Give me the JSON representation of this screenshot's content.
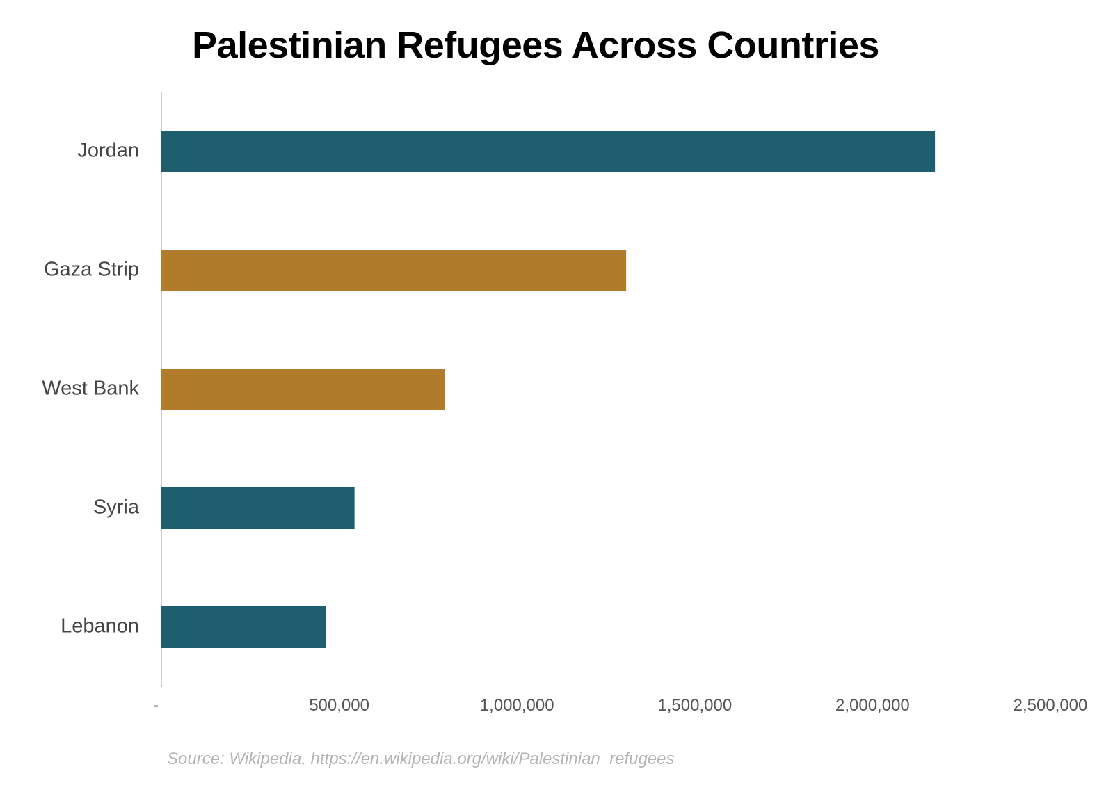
{
  "chart_data": {
    "type": "bar",
    "orientation": "horizontal",
    "title": "Palestinian Refugees Across Countries",
    "categories": [
      "Jordan",
      "Gaza Strip",
      "West Bank",
      "Syria",
      "Lebanon"
    ],
    "values": [
      2175491,
      1307011,
      797722,
      543014,
      463664
    ],
    "bar_colors": [
      "#1f5e6e",
      "#b07b2b",
      "#b07b2b",
      "#1f5e6e",
      "#1f5e6e"
    ],
    "xlim": [
      0,
      2500000
    ],
    "x_ticks": [
      0,
      500000,
      1000000,
      1500000,
      2000000,
      2500000
    ],
    "x_tick_labels": [
      "-",
      "500,000",
      "1,000,000",
      "1,500,000",
      "2,000,000",
      "2,500,000"
    ],
    "xlabel": "",
    "ylabel": "",
    "grid": false,
    "legend": "none"
  },
  "source_note": "Source: Wikipedia, https://en.wikipedia.org/wiki/Palestinian_refugees"
}
